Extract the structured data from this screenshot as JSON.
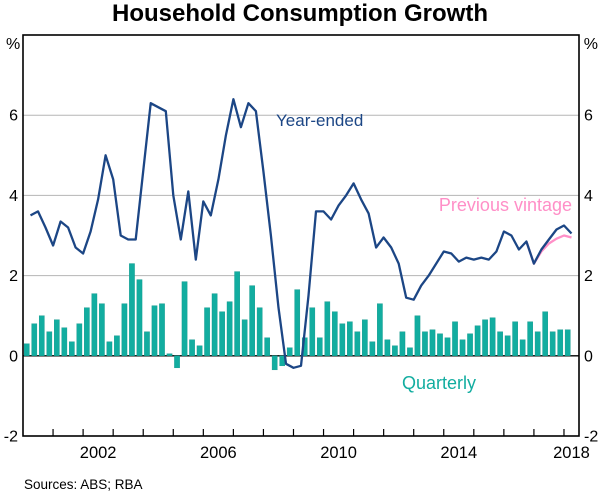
{
  "title": "Household Consumption Growth",
  "source_note": "Sources: ABS; RBA",
  "y_axis": {
    "unit_label": "%",
    "tick_values": [
      6,
      4,
      2,
      0,
      -2
    ],
    "ylim": [
      -2,
      8
    ],
    "gridlines": [
      6,
      4,
      2
    ]
  },
  "x_axis": {
    "xlim_years": [
      2000,
      2018.5
    ],
    "minor_tick_years": [
      2001,
      2002,
      2003,
      2004,
      2005,
      2006,
      2007,
      2008,
      2009,
      2010,
      2011,
      2012,
      2013,
      2014,
      2015,
      2016,
      2017,
      2018
    ],
    "year_labels": [
      {
        "text": "2002",
        "at": 2002.5
      },
      {
        "text": "2006",
        "at": 2006.5
      },
      {
        "text": "2010",
        "at": 2010.5
      },
      {
        "text": "2014",
        "at": 2014.5
      },
      {
        "text": "2018",
        "at": 2018.25
      }
    ]
  },
  "annotations": {
    "year_ended": "Year-ended",
    "previous_vintage": "Previous vintage",
    "quarterly": "Quarterly"
  },
  "colors": {
    "year_ended": "#1c4685",
    "previous_vintage": "#ff8fc7",
    "quarterly": "#12ada0",
    "gridline": "#b5b5b5",
    "axis": "#000000"
  },
  "chart_data": {
    "type": "bar+line",
    "title": "Household Consumption Growth",
    "ylabel": "%",
    "ylim": [
      -2,
      8
    ],
    "x_range": "2000Q1 to 2018Q1, quarterly",
    "legend_position": "inline annotations",
    "grid": "horizontal only",
    "series": [
      {
        "name": "Quarterly",
        "type": "bar",
        "start": "2000Q1",
        "frequency": "quarterly",
        "values": [
          0.3,
          0.8,
          1.0,
          0.6,
          0.9,
          0.7,
          0.35,
          0.8,
          1.2,
          1.55,
          1.3,
          0.35,
          0.5,
          1.3,
          2.3,
          1.9,
          0.6,
          1.25,
          1.3,
          0.05,
          -0.3,
          1.85,
          0.4,
          0.25,
          1.2,
          1.55,
          1.1,
          1.35,
          2.1,
          0.9,
          1.75,
          1.2,
          0.45,
          -0.35,
          -0.25,
          0.2,
          1.65,
          0.45,
          1.2,
          0.45,
          1.35,
          1.1,
          0.8,
          0.85,
          0.6,
          0.9,
          0.35,
          1.3,
          0.4,
          0.25,
          0.6,
          0.2,
          1.0,
          0.6,
          0.65,
          0.55,
          0.45,
          0.85,
          0.4,
          0.55,
          0.75,
          0.9,
          0.95,
          0.6,
          0.5,
          0.85,
          0.4,
          0.85,
          0.6,
          1.1,
          0.6,
          0.65,
          0.65
        ]
      },
      {
        "name": "Year-ended",
        "type": "line",
        "start": "2000Q1",
        "frequency": "quarterly",
        "values": [
          3.5,
          3.6,
          3.2,
          2.75,
          3.35,
          3.2,
          2.7,
          2.55,
          3.1,
          3.9,
          5.0,
          4.4,
          3.0,
          2.9,
          2.9,
          4.6,
          6.3,
          6.2,
          6.1,
          4.0,
          2.9,
          4.1,
          2.4,
          3.85,
          3.5,
          4.4,
          5.5,
          6.4,
          5.7,
          6.3,
          6.1,
          4.6,
          3.0,
          1.2,
          -0.2,
          -0.3,
          -0.25,
          1.5,
          3.6,
          3.6,
          3.4,
          3.75,
          4.0,
          4.3,
          3.9,
          3.55,
          2.7,
          2.95,
          2.7,
          2.3,
          1.45,
          1.4,
          1.75,
          2.0,
          2.3,
          2.6,
          2.55,
          2.35,
          2.45,
          2.4,
          2.45,
          2.4,
          2.6,
          3.1,
          3.0,
          2.65,
          2.85,
          2.3,
          2.65,
          2.9,
          3.15,
          3.25,
          3.05
        ]
      },
      {
        "name": "Previous vintage",
        "type": "line",
        "start": "2016Q3",
        "frequency": "quarterly",
        "values": [
          2.85,
          2.3,
          2.6,
          2.8,
          2.92,
          3.0,
          2.95
        ]
      }
    ]
  }
}
